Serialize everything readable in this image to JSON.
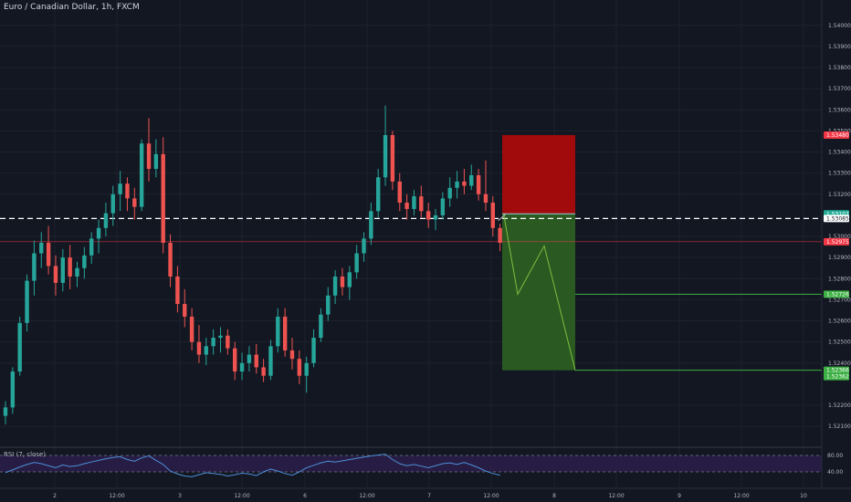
{
  "header": {
    "title": "Euro / Canadian Dollar, 1h, FXCM"
  },
  "rsi_panel": {
    "label": "RSI (7, close)",
    "levels": [
      "80.00",
      "40.00"
    ]
  },
  "colors": {
    "background": "#131722",
    "bull": "#26a69a",
    "bear": "#ef5350",
    "stop_zone": "#a10b0b",
    "target_zone": "#2a5a22",
    "rsi_line": "#4c8fd6",
    "rsi_band": "#2b1f4a",
    "target_line": "#3cb043"
  },
  "chart_data": {
    "type": "candlestick",
    "y_axis": {
      "range": [
        1.5201,
        1.5412
      ],
      "ticks": [
        "1.54000",
        "1.53900",
        "1.53800",
        "1.53700",
        "1.53600",
        "1.53500",
        "1.53400",
        "1.53300",
        "1.53200",
        "1.53000",
        "1.52900",
        "1.52800",
        "1.52700",
        "1.52600",
        "1.52500",
        "1.52400",
        "1.52200",
        "1.52100"
      ]
    },
    "x_axis": {
      "labels": [
        "2",
        "12:00",
        "3",
        "12:00",
        "6",
        "12:00",
        "7",
        "12:00",
        "8",
        "12:00",
        "9",
        "12:00",
        "10"
      ]
    },
    "price_tags": [
      {
        "text": "1.53480",
        "price": 1.5348,
        "color": "#f23645"
      },
      {
        "text": "1.53107",
        "price": 1.53107,
        "color": "#22ab94"
      },
      {
        "text": "1.53085",
        "price": 1.53085,
        "color": "#ffffff"
      },
      {
        "text": "1.52975",
        "price": 1.52975,
        "color": "#f23645"
      },
      {
        "text": "1.52726",
        "price": 1.52726,
        "color": "#3cb043"
      },
      {
        "text": "1.52366",
        "price": 1.52366,
        "color": "#3cb043"
      },
      {
        "text": "1.52362",
        "price": 1.52362,
        "color": "#3cb043"
      }
    ],
    "horizontal_lines": {
      "dashed_price": 1.53085,
      "current_price": 1.52975
    },
    "position": {
      "entry": 1.53107,
      "stop": 1.5348,
      "target": 1.52366,
      "target_1": 1.52726
    },
    "candles": [
      [
        1.5215,
        1.5222,
        1.5211,
        1.5219
      ],
      [
        1.5219,
        1.5238,
        1.5216,
        1.5236
      ],
      [
        1.5236,
        1.5262,
        1.5234,
        1.5259
      ],
      [
        1.5259,
        1.5282,
        1.5255,
        1.5279
      ],
      [
        1.5279,
        1.5298,
        1.5272,
        1.5292
      ],
      [
        1.5292,
        1.5302,
        1.5285,
        1.5297
      ],
      [
        1.5297,
        1.5305,
        1.5282,
        1.5286
      ],
      [
        1.5286,
        1.5291,
        1.5272,
        1.5278
      ],
      [
        1.5278,
        1.5294,
        1.5274,
        1.529
      ],
      [
        1.529,
        1.5296,
        1.5275,
        1.5281
      ],
      [
        1.5281,
        1.5288,
        1.5276,
        1.5285
      ],
      [
        1.5285,
        1.5295,
        1.528,
        1.5291
      ],
      [
        1.5291,
        1.5302,
        1.5287,
        1.5299
      ],
      [
        1.5299,
        1.5308,
        1.5292,
        1.5304
      ],
      [
        1.5304,
        1.5316,
        1.53,
        1.5311
      ],
      [
        1.5311,
        1.5324,
        1.5305,
        1.532
      ],
      [
        1.532,
        1.5331,
        1.5312,
        1.5325
      ],
      [
        1.5325,
        1.5328,
        1.5312,
        1.5318
      ],
      [
        1.5318,
        1.5323,
        1.5308,
        1.5314
      ],
      [
        1.5314,
        1.5346,
        1.5312,
        1.5344
      ],
      [
        1.5344,
        1.5356,
        1.5326,
        1.5332
      ],
      [
        1.5332,
        1.5346,
        1.5328,
        1.5339
      ],
      [
        1.5339,
        1.5347,
        1.5292,
        1.5297
      ],
      [
        1.5297,
        1.5301,
        1.5276,
        1.5281
      ],
      [
        1.5281,
        1.5286,
        1.5264,
        1.5268
      ],
      [
        1.5268,
        1.5275,
        1.5257,
        1.5262
      ],
      [
        1.5262,
        1.5266,
        1.5246,
        1.525
      ],
      [
        1.525,
        1.5258,
        1.524,
        1.5244
      ],
      [
        1.5244,
        1.5252,
        1.5239,
        1.5248
      ],
      [
        1.5248,
        1.5256,
        1.5244,
        1.5252
      ],
      [
        1.5252,
        1.5257,
        1.5245,
        1.5253
      ],
      [
        1.5253,
        1.5256,
        1.5244,
        1.5247
      ],
      [
        1.5247,
        1.525,
        1.5232,
        1.5236
      ],
      [
        1.5236,
        1.5245,
        1.5232,
        1.524
      ],
      [
        1.524,
        1.5248,
        1.5236,
        1.5244
      ],
      [
        1.5244,
        1.5249,
        1.5235,
        1.5238
      ],
      [
        1.5238,
        1.5242,
        1.5231,
        1.5234
      ],
      [
        1.5234,
        1.5251,
        1.5232,
        1.5248
      ],
      [
        1.5248,
        1.5266,
        1.5245,
        1.5262
      ],
      [
        1.5262,
        1.5266,
        1.5243,
        1.5246
      ],
      [
        1.5246,
        1.5252,
        1.5237,
        1.5242
      ],
      [
        1.5242,
        1.5246,
        1.523,
        1.5234
      ],
      [
        1.5234,
        1.5243,
        1.5226,
        1.524
      ],
      [
        1.524,
        1.5256,
        1.5238,
        1.5252
      ],
      [
        1.5252,
        1.5266,
        1.525,
        1.5263
      ],
      [
        1.5263,
        1.5276,
        1.526,
        1.5272
      ],
      [
        1.5272,
        1.5284,
        1.5268,
        1.5281
      ],
      [
        1.5281,
        1.5285,
        1.5272,
        1.5276
      ],
      [
        1.5276,
        1.5286,
        1.527,
        1.5283
      ],
      [
        1.5283,
        1.5296,
        1.528,
        1.5292
      ],
      [
        1.5292,
        1.5302,
        1.5288,
        1.5299
      ],
      [
        1.5299,
        1.5316,
        1.5296,
        1.5312
      ],
      [
        1.5312,
        1.5332,
        1.5309,
        1.5328
      ],
      [
        1.5328,
        1.5362,
        1.5324,
        1.5348
      ],
      [
        1.5348,
        1.535,
        1.5322,
        1.5326
      ],
      [
        1.5326,
        1.533,
        1.5312,
        1.5316
      ],
      [
        1.5316,
        1.532,
        1.5308,
        1.5313
      ],
      [
        1.5313,
        1.5322,
        1.531,
        1.5319
      ],
      [
        1.5319,
        1.5324,
        1.5309,
        1.5312
      ],
      [
        1.5312,
        1.5316,
        1.5304,
        1.5308
      ],
      [
        1.5308,
        1.5313,
        1.5303,
        1.531
      ],
      [
        1.531,
        1.5321,
        1.5308,
        1.5318
      ],
      [
        1.5318,
        1.5328,
        1.5314,
        1.5323
      ],
      [
        1.5323,
        1.5331,
        1.5318,
        1.5326
      ],
      [
        1.5326,
        1.5332,
        1.532,
        1.5324
      ],
      [
        1.5324,
        1.5334,
        1.5322,
        1.5329
      ],
      [
        1.5329,
        1.5332,
        1.5317,
        1.532
      ],
      [
        1.532,
        1.5336,
        1.5312,
        1.5316
      ],
      [
        1.5316,
        1.5319,
        1.53,
        1.5304
      ],
      [
        1.5304,
        1.5306,
        1.5293,
        1.5297
      ]
    ],
    "rsi": [
      38,
      45,
      52,
      58,
      63,
      60,
      55,
      50,
      57,
      53,
      55,
      60,
      64,
      68,
      72,
      75,
      77,
      70,
      66,
      74,
      79,
      68,
      58,
      42,
      35,
      30,
      28,
      33,
      38,
      36,
      34,
      30,
      33,
      37,
      35,
      31,
      40,
      47,
      42,
      36,
      32,
      40,
      50,
      56,
      62,
      66,
      64,
      67,
      70,
      73,
      76,
      79,
      81,
      83,
      70,
      60,
      55,
      58,
      54,
      50,
      55,
      60,
      62,
      58,
      63,
      57,
      50,
      42,
      36,
      32
    ],
    "rsi_range": [
      0,
      100
    ]
  }
}
